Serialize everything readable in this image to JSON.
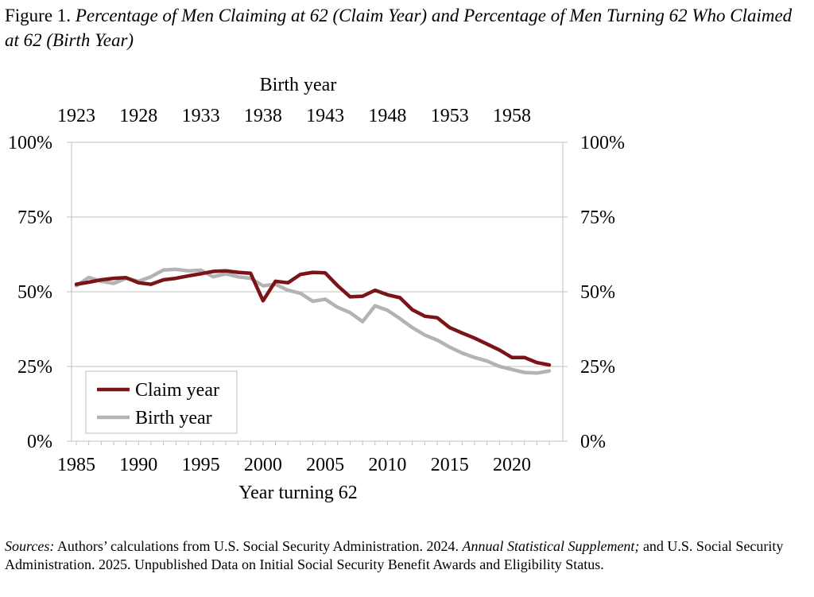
{
  "figure": {
    "prefix": "Figure 1.",
    "title_italic": "Percentage of Men Claiming at 62 (Claim Year) and Percentage of Men Turning 62 Who Claimed at 62 (Birth Year)"
  },
  "sources": {
    "label": "Sources:",
    "text1": "Authors’ calculations from U.S. Social Security Administration. 2024.",
    "italic": "Annual Statistical Supplement;",
    "text2": "and U.S. Social Security Administration. 2025. Unpublished Data on Initial Social Security Benefit Awards and Eligibility Status."
  },
  "chart_data": {
    "type": "line",
    "title": "Percentage of Men Claiming at 62 (Claim Year) and Percentage of Men Turning 62 Who Claimed at 62 (Birth Year)",
    "xlabel": "Year turning 62",
    "x2label": "Birth year",
    "x_ticks": [
      1985,
      1990,
      1995,
      2000,
      2005,
      2010,
      2015,
      2020
    ],
    "x2_ticks": [
      1923,
      1928,
      1933,
      1938,
      1943,
      1948,
      1953,
      1958
    ],
    "xlim": [
      1985,
      2024
    ],
    "ylim": [
      0,
      100
    ],
    "y_ticks": [
      "0%",
      "25%",
      "50%",
      "75%",
      "100%"
    ],
    "y_tick_values": [
      0,
      25,
      50,
      75,
      100
    ],
    "legend_position": "bottom-left",
    "x": [
      1985,
      1986,
      1987,
      1988,
      1989,
      1990,
      1991,
      1992,
      1993,
      1994,
      1995,
      1996,
      1997,
      1998,
      1999,
      2000,
      2001,
      2002,
      2003,
      2004,
      2005,
      2006,
      2007,
      2008,
      2009,
      2010,
      2011,
      2012,
      2013,
      2014,
      2015,
      2016,
      2017,
      2018,
      2019,
      2020,
      2021,
      2022,
      2023
    ],
    "series": [
      {
        "name": "Claim year",
        "color": "#7b1416",
        "values": [
          52.5,
          53.2,
          54.0,
          54.5,
          54.7,
          53.0,
          52.5,
          54.0,
          54.5,
          55.3,
          56.0,
          56.8,
          57.0,
          56.5,
          56.2,
          47.0,
          53.5,
          53.0,
          55.8,
          56.5,
          56.3,
          52.0,
          48.3,
          48.5,
          50.5,
          49.0,
          48.0,
          44.0,
          41.8,
          41.3,
          38.0,
          36.2,
          34.5,
          32.5,
          30.5,
          28.0,
          28.0,
          26.3,
          25.5
        ]
      },
      {
        "name": "Birth year",
        "color": "#b3b3b3",
        "values": [
          52.0,
          54.8,
          53.5,
          52.8,
          54.5,
          53.5,
          55.0,
          57.3,
          57.5,
          57.0,
          57.2,
          55.0,
          56.0,
          55.0,
          54.5,
          52.0,
          52.5,
          50.5,
          49.5,
          46.8,
          47.5,
          44.8,
          43.0,
          40.0,
          45.3,
          43.8,
          41.0,
          38.0,
          35.5,
          33.8,
          31.5,
          29.5,
          28.0,
          26.8,
          25.0,
          24.0,
          23.0,
          22.8,
          23.5
        ]
      }
    ]
  }
}
